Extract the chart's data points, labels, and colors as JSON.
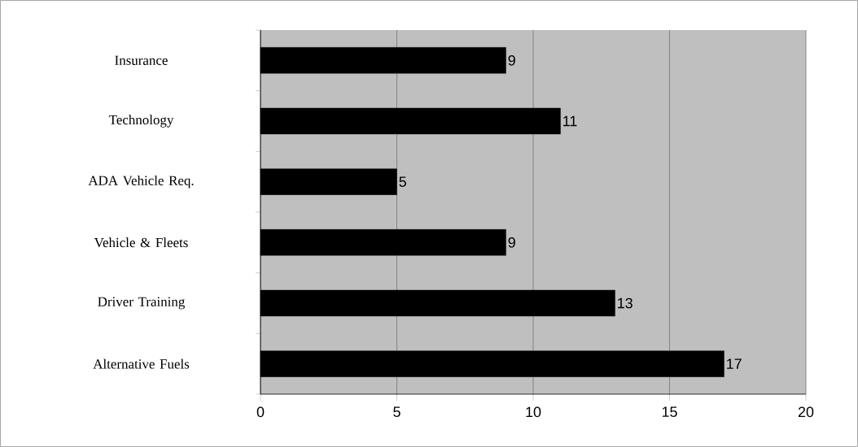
{
  "chart_data": {
    "type": "bar",
    "orientation": "horizontal",
    "categories": [
      "Insurance",
      "Technology",
      "ADA Vehicle Req.",
      "Vehicle & Fleets",
      "Driver Training",
      "Alternative Fuels"
    ],
    "values": [
      9,
      11,
      5,
      9,
      13,
      17
    ],
    "color": "#000000",
    "xlim": [
      0,
      20
    ],
    "xticks": [
      0,
      5,
      10,
      15,
      20
    ],
    "grid": "x",
    "data_labels": true
  }
}
